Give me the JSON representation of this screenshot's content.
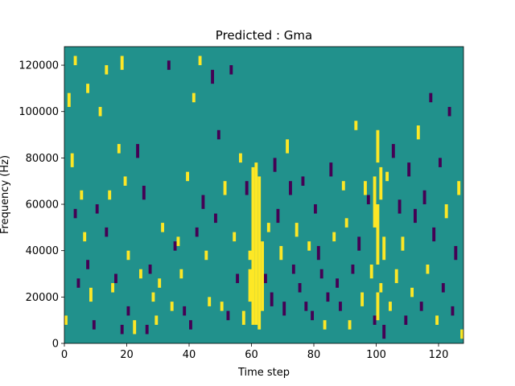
{
  "chart_data": {
    "type": "heatmap",
    "title": "Predicted : Gma",
    "xlabel": "Time step",
    "ylabel": "Frequency (Hz)",
    "xlim": [
      0,
      128
    ],
    "ylim": [
      0,
      128000
    ],
    "x_ticks": [
      0,
      20,
      40,
      60,
      80,
      100,
      120
    ],
    "y_ticks": [
      0,
      20000,
      40000,
      60000,
      80000,
      100000,
      120000
    ],
    "y_tick_labels": [
      "0",
      "20000",
      "40000",
      "60000",
      "80000",
      "100000",
      "120000"
    ],
    "grid": false,
    "legend": "none",
    "colormap": {
      "background": "#21918c",
      "high": "#fde725",
      "low": "#440154"
    },
    "n_time_steps": 128,
    "n_freq_bins": 128,
    "bin_height_hz": 1000,
    "values_note": "cells list [time_step, freq_start_hz, freq_end_hz, level]; level 1 = high (yellow), -1 = low (purple); all other cells are background",
    "cells": [
      [
        0,
        8000,
        12000,
        1
      ],
      [
        1,
        102000,
        108000,
        1
      ],
      [
        2,
        76000,
        82000,
        1
      ],
      [
        3,
        120000,
        124000,
        1
      ],
      [
        3,
        54000,
        58000,
        -1
      ],
      [
        4,
        24000,
        28000,
        -1
      ],
      [
        5,
        62000,
        66000,
        1
      ],
      [
        6,
        44000,
        48000,
        1
      ],
      [
        7,
        32000,
        36000,
        -1
      ],
      [
        7,
        108000,
        112000,
        1
      ],
      [
        8,
        18000,
        24000,
        1
      ],
      [
        9,
        6000,
        10000,
        -1
      ],
      [
        10,
        56000,
        60000,
        -1
      ],
      [
        11,
        98000,
        102000,
        1
      ],
      [
        13,
        116000,
        120000,
        1
      ],
      [
        13,
        46000,
        50000,
        -1
      ],
      [
        14,
        62000,
        66000,
        1
      ],
      [
        15,
        22000,
        26000,
        1
      ],
      [
        16,
        26000,
        30000,
        -1
      ],
      [
        17,
        82000,
        86000,
        1
      ],
      [
        18,
        118000,
        124000,
        1
      ],
      [
        18,
        4000,
        8000,
        -1
      ],
      [
        19,
        68000,
        72000,
        1
      ],
      [
        20,
        36000,
        40000,
        1
      ],
      [
        20,
        12000,
        16000,
        -1
      ],
      [
        22,
        4000,
        10000,
        1
      ],
      [
        23,
        80000,
        86000,
        -1
      ],
      [
        24,
        28000,
        32000,
        1
      ],
      [
        25,
        62000,
        68000,
        -1
      ],
      [
        26,
        4000,
        8000,
        -1
      ],
      [
        27,
        30000,
        34000,
        -1
      ],
      [
        28,
        18000,
        22000,
        1
      ],
      [
        29,
        8000,
        12000,
        1
      ],
      [
        30,
        24000,
        28000,
        1
      ],
      [
        31,
        48000,
        52000,
        1
      ],
      [
        33,
        118000,
        122000,
        -1
      ],
      [
        34,
        14000,
        18000,
        1
      ],
      [
        35,
        40000,
        44000,
        -1
      ],
      [
        36,
        42000,
        46000,
        1
      ],
      [
        37,
        28000,
        32000,
        1
      ],
      [
        38,
        12000,
        16000,
        -1
      ],
      [
        39,
        70000,
        74000,
        1
      ],
      [
        40,
        6000,
        10000,
        -1
      ],
      [
        41,
        104000,
        108000,
        1
      ],
      [
        42,
        46000,
        50000,
        -1
      ],
      [
        43,
        120000,
        124000,
        1
      ],
      [
        44,
        58000,
        64000,
        -1
      ],
      [
        45,
        36000,
        40000,
        1
      ],
      [
        46,
        16000,
        20000,
        1
      ],
      [
        47,
        112000,
        118000,
        -1
      ],
      [
        48,
        52000,
        56000,
        -1
      ],
      [
        49,
        88000,
        92000,
        -1
      ],
      [
        50,
        14000,
        18000,
        1
      ],
      [
        51,
        64000,
        70000,
        1
      ],
      [
        52,
        10000,
        14000,
        -1
      ],
      [
        53,
        116000,
        120000,
        -1
      ],
      [
        54,
        44000,
        48000,
        1
      ],
      [
        55,
        26000,
        30000,
        -1
      ],
      [
        56,
        78000,
        82000,
        1
      ],
      [
        57,
        8000,
        14000,
        1
      ],
      [
        58,
        64000,
        70000,
        -1
      ],
      [
        59,
        36000,
        40000,
        1
      ],
      [
        59,
        18000,
        32000,
        1
      ],
      [
        60,
        8000,
        76000,
        1
      ],
      [
        61,
        8000,
        78000,
        1
      ],
      [
        62,
        6000,
        72000,
        1
      ],
      [
        63,
        14000,
        44000,
        1
      ],
      [
        64,
        26000,
        30000,
        -1
      ],
      [
        65,
        48000,
        52000,
        1
      ],
      [
        66,
        16000,
        22000,
        -1
      ],
      [
        67,
        74000,
        80000,
        -1
      ],
      [
        68,
        52000,
        58000,
        -1
      ],
      [
        69,
        36000,
        42000,
        1
      ],
      [
        70,
        12000,
        18000,
        -1
      ],
      [
        71,
        82000,
        88000,
        1
      ],
      [
        72,
        64000,
        70000,
        -1
      ],
      [
        73,
        30000,
        34000,
        -1
      ],
      [
        74,
        46000,
        52000,
        1
      ],
      [
        75,
        22000,
        26000,
        -1
      ],
      [
        76,
        68000,
        72000,
        -1
      ],
      [
        77,
        14000,
        18000,
        -1
      ],
      [
        78,
        40000,
        44000,
        1
      ],
      [
        79,
        10000,
        14000,
        -1
      ],
      [
        80,
        56000,
        60000,
        -1
      ],
      [
        81,
        36000,
        42000,
        -1
      ],
      [
        82,
        28000,
        32000,
        -1
      ],
      [
        83,
        6000,
        10000,
        1
      ],
      [
        84,
        18000,
        22000,
        -1
      ],
      [
        85,
        72000,
        78000,
        -1
      ],
      [
        86,
        44000,
        48000,
        1
      ],
      [
        87,
        24000,
        28000,
        -1
      ],
      [
        88,
        14000,
        18000,
        -1
      ],
      [
        89,
        66000,
        70000,
        1
      ],
      [
        90,
        50000,
        54000,
        1
      ],
      [
        91,
        6000,
        10000,
        1
      ],
      [
        92,
        30000,
        34000,
        -1
      ],
      [
        93,
        92000,
        96000,
        1
      ],
      [
        94,
        40000,
        46000,
        -1
      ],
      [
        95,
        16000,
        22000,
        1
      ],
      [
        96,
        64000,
        70000,
        1
      ],
      [
        97,
        60000,
        64000,
        -1
      ],
      [
        98,
        28000,
        34000,
        1
      ],
      [
        99,
        8000,
        12000,
        -1
      ],
      [
        99,
        50000,
        72000,
        1
      ],
      [
        100,
        10000,
        22000,
        1
      ],
      [
        100,
        34000,
        60000,
        1
      ],
      [
        100,
        78000,
        92000,
        1
      ],
      [
        101,
        22000,
        26000,
        1
      ],
      [
        101,
        62000,
        76000,
        1
      ],
      [
        102,
        36000,
        46000,
        1
      ],
      [
        102,
        2000,
        8000,
        -1
      ],
      [
        103,
        70000,
        74000,
        1
      ],
      [
        104,
        14000,
        18000,
        1
      ],
      [
        105,
        80000,
        86000,
        -1
      ],
      [
        106,
        26000,
        32000,
        1
      ],
      [
        107,
        56000,
        62000,
        -1
      ],
      [
        108,
        40000,
        46000,
        1
      ],
      [
        109,
        8000,
        12000,
        -1
      ],
      [
        110,
        72000,
        78000,
        -1
      ],
      [
        111,
        20000,
        24000,
        1
      ],
      [
        112,
        52000,
        58000,
        -1
      ],
      [
        113,
        88000,
        94000,
        1
      ],
      [
        114,
        14000,
        18000,
        -1
      ],
      [
        115,
        60000,
        66000,
        -1
      ],
      [
        116,
        30000,
        34000,
        1
      ],
      [
        117,
        104000,
        108000,
        -1
      ],
      [
        118,
        44000,
        50000,
        -1
      ],
      [
        119,
        8000,
        12000,
        1
      ],
      [
        120,
        76000,
        80000,
        -1
      ],
      [
        121,
        22000,
        26000,
        -1
      ],
      [
        122,
        54000,
        60000,
        1
      ],
      [
        123,
        98000,
        102000,
        -1
      ],
      [
        124,
        12000,
        16000,
        -1
      ],
      [
        125,
        36000,
        42000,
        -1
      ],
      [
        126,
        64000,
        70000,
        1
      ],
      [
        127,
        2000,
        6000,
        1
      ]
    ]
  }
}
